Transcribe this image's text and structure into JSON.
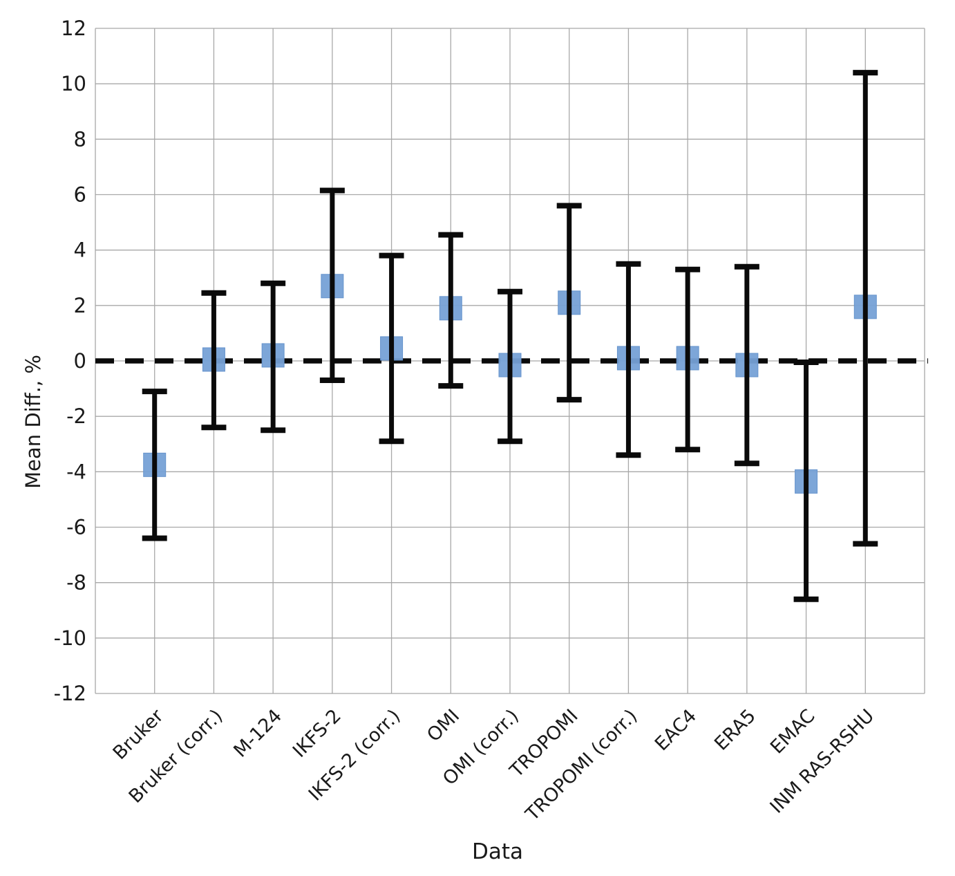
{
  "chart_data": {
    "type": "scatter",
    "subtype": "errorbar",
    "title": "",
    "xlabel": "Data",
    "ylabel": "Mean Diff., %",
    "ylim": [
      -12,
      12
    ],
    "ytick_step": 2,
    "ytick_labels": [
      "12",
      "10",
      "8",
      "6",
      "4",
      "2",
      "0",
      "-2",
      "-4",
      "-6",
      "-8",
      "-10",
      "-12"
    ],
    "grid": true,
    "zero_line_dashed": true,
    "categories": [
      "Bruker",
      "Bruker (corr.)",
      "M-124",
      "IKFS-2",
      "IKFS-2 (corr.)",
      "OMI",
      "OMI (corr.)",
      "TROPOMI",
      "TROPOMI (corr.)",
      "EAC4",
      "ERA5",
      "EMAC",
      "INM RAS-RSHU"
    ],
    "series": [
      {
        "name": "Mean Diff., %",
        "means": [
          -3.75,
          0.05,
          0.2,
          2.7,
          0.45,
          1.9,
          -0.15,
          2.1,
          0.1,
          0.1,
          -0.15,
          -4.35,
          1.95
        ],
        "err_low": [
          -6.4,
          -2.4,
          -2.5,
          -0.7,
          -2.9,
          -0.9,
          -2.9,
          -1.4,
          -3.4,
          -3.2,
          -3.7,
          -8.6,
          -6.6
        ],
        "err_high": [
          -1.1,
          2.45,
          2.8,
          6.15,
          3.8,
          4.55,
          2.5,
          5.6,
          3.5,
          3.3,
          3.4,
          -0.05,
          10.4
        ]
      }
    ],
    "colors": {
      "marker_fill": "#76a1d6",
      "marker_edge": "#6593cc",
      "error_bar": "#0a0a0a",
      "zero_line": "#0a0a0a",
      "grid": "#a8a8a8",
      "text": "#1a1a1a",
      "background": "#ffffff"
    }
  }
}
